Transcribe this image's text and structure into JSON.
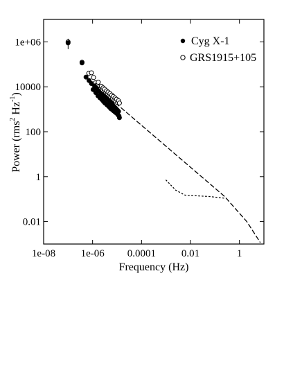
{
  "chart_data": {
    "type": "scatter",
    "title": "",
    "xlabel": "Frequency (Hz)",
    "ylabel_main": "Power (rms",
    "ylabel_sup1": "2",
    "ylabel_mid": " Hz",
    "ylabel_sup2": "-1",
    "ylabel_end": ")",
    "xscale": "log",
    "yscale": "log",
    "xlim": [
      1e-08,
      10
    ],
    "ylim": [
      0.001,
      10000000.0
    ],
    "grid": false,
    "legend_position": "top-right",
    "xticks": [
      {
        "value": 1e-08,
        "label": "1e-08"
      },
      {
        "value": 1e-06,
        "label": "1e-06"
      },
      {
        "value": 0.0001,
        "label": "0.0001"
      },
      {
        "value": 0.01,
        "label": "0.01"
      },
      {
        "value": 1,
        "label": "1"
      }
    ],
    "yticks": [
      {
        "value": 1000000.0,
        "label": "1e+06"
      },
      {
        "value": 10000.0,
        "label": "10000"
      },
      {
        "value": 100,
        "label": "100"
      },
      {
        "value": 1,
        "label": "1"
      },
      {
        "value": 0.01,
        "label": "0.01"
      }
    ],
    "series": [
      {
        "name": "Cyg X-1",
        "marker": "filled-circle",
        "color": "#000000",
        "points": [
          [
            1e-07,
            900000.0
          ],
          [
            3.7e-07,
            115000.0
          ],
          [
            5.4e-07,
            27000.0
          ],
          [
            7.2e-07,
            19000.0
          ],
          [
            9e-07,
            14000.0
          ],
          [
            1.05e-06,
            7500
          ],
          [
            1.2e-06,
            11000.0
          ],
          [
            1.35e-06,
            5500
          ],
          [
            1.5e-06,
            8500
          ],
          [
            1.65e-06,
            4000
          ],
          [
            1.8e-06,
            6500
          ],
          [
            2e-06,
            3200
          ],
          [
            2.2e-06,
            5000
          ],
          [
            2.4e-06,
            2700
          ],
          [
            2.6e-06,
            4400
          ],
          [
            2.8e-06,
            2200
          ],
          [
            3e-06,
            3800
          ],
          [
            3.2e-06,
            1900
          ],
          [
            3.5e-06,
            3300
          ],
          [
            3.8e-06,
            1600
          ],
          [
            4.1e-06,
            2800
          ],
          [
            4.4e-06,
            1400
          ],
          [
            4.7e-06,
            2400
          ],
          [
            5e-06,
            1200
          ],
          [
            5.3e-06,
            2100
          ],
          [
            5.6e-06,
            1050
          ],
          [
            6e-06,
            1800
          ],
          [
            6.4e-06,
            950
          ],
          [
            6.8e-06,
            1500
          ],
          [
            7.2e-06,
            850
          ],
          [
            7.6e-06,
            1300
          ],
          [
            8e-06,
            780
          ],
          [
            8.5e-06,
            1150
          ],
          [
            9e-06,
            700
          ],
          [
            9.5e-06,
            1000
          ],
          [
            1e-05,
            640
          ],
          [
            1.05e-05,
            900
          ],
          [
            1.1e-05,
            560
          ],
          [
            1.15e-05,
            800
          ],
          [
            1.2e-05,
            500
          ],
          [
            1.25e-05,
            420
          ]
        ]
      },
      {
        "name": "GRS1915+105",
        "marker": "open-circle",
        "color": "#000000",
        "points": [
          [
            1e-07,
            1000000.0
          ],
          [
            3.7e-07,
            125000.0
          ],
          [
            7e-07,
            40000.0
          ],
          [
            9e-07,
            42000.0
          ],
          [
            1.1e-06,
            26000.0
          ],
          [
            1.3e-06,
            15000.0
          ],
          [
            1.5e-06,
            12000.0
          ],
          [
            1.7e-06,
            16000.0
          ],
          [
            1.9e-06,
            10000.0
          ],
          [
            2.1e-06,
            8000
          ],
          [
            2.3e-06,
            10500.0
          ],
          [
            2.5e-06,
            7500
          ],
          [
            2.7e-06,
            9000
          ],
          [
            2.9e-06,
            6000
          ],
          [
            3.1e-06,
            7800
          ],
          [
            3.4e-06,
            5200
          ],
          [
            3.7e-06,
            6600
          ],
          [
            4e-06,
            4500
          ],
          [
            4.3e-06,
            5800
          ],
          [
            4.7e-06,
            3900
          ],
          [
            5.1e-06,
            5000
          ],
          [
            5.5e-06,
            3400
          ],
          [
            6e-06,
            4300
          ],
          [
            6.5e-06,
            3000
          ],
          [
            7e-06,
            3700
          ],
          [
            7.6e-06,
            2600
          ],
          [
            8.2e-06,
            3200
          ],
          [
            8.8e-06,
            2300
          ],
          [
            9.5e-06,
            2800
          ],
          [
            1.05e-05,
            2000
          ],
          [
            1.15e-05,
            2400
          ],
          [
            1.25e-05,
            1900
          ]
        ]
      }
    ],
    "lines": [
      {
        "style": "dashed",
        "points": [
          [
            4.6e-07,
            30000.0
          ],
          [
            1.3e-05,
            1300
          ],
          [
            0.25,
            0.13
          ],
          [
            2.0,
            0.01
          ],
          [
            7.0,
            0.0012
          ]
        ]
      },
      {
        "style": "dotted",
        "points": [
          [
            0.001,
            0.7
          ],
          [
            0.0025,
            0.25
          ],
          [
            0.006,
            0.15
          ],
          [
            0.06,
            0.13
          ],
          [
            0.25,
            0.11
          ]
        ]
      }
    ]
  }
}
